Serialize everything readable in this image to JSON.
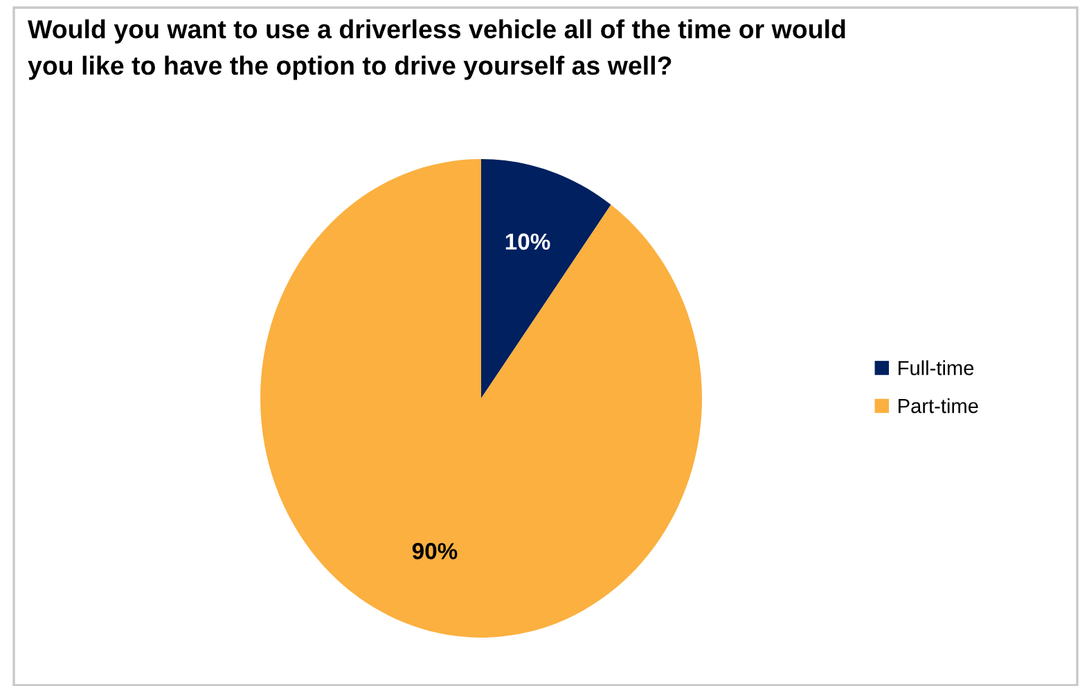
{
  "chart_data": {
    "type": "pie",
    "title": "Would you want to use a driverless vehicle all of the time or would\nyou like to have the option to drive yourself as well?",
    "categories": [
      "Full-time",
      "Part-time"
    ],
    "values": [
      10,
      90
    ],
    "colors": [
      "#002060",
      "#fbb040"
    ],
    "value_labels": [
      "10%",
      "90%"
    ],
    "legend": "right"
  }
}
